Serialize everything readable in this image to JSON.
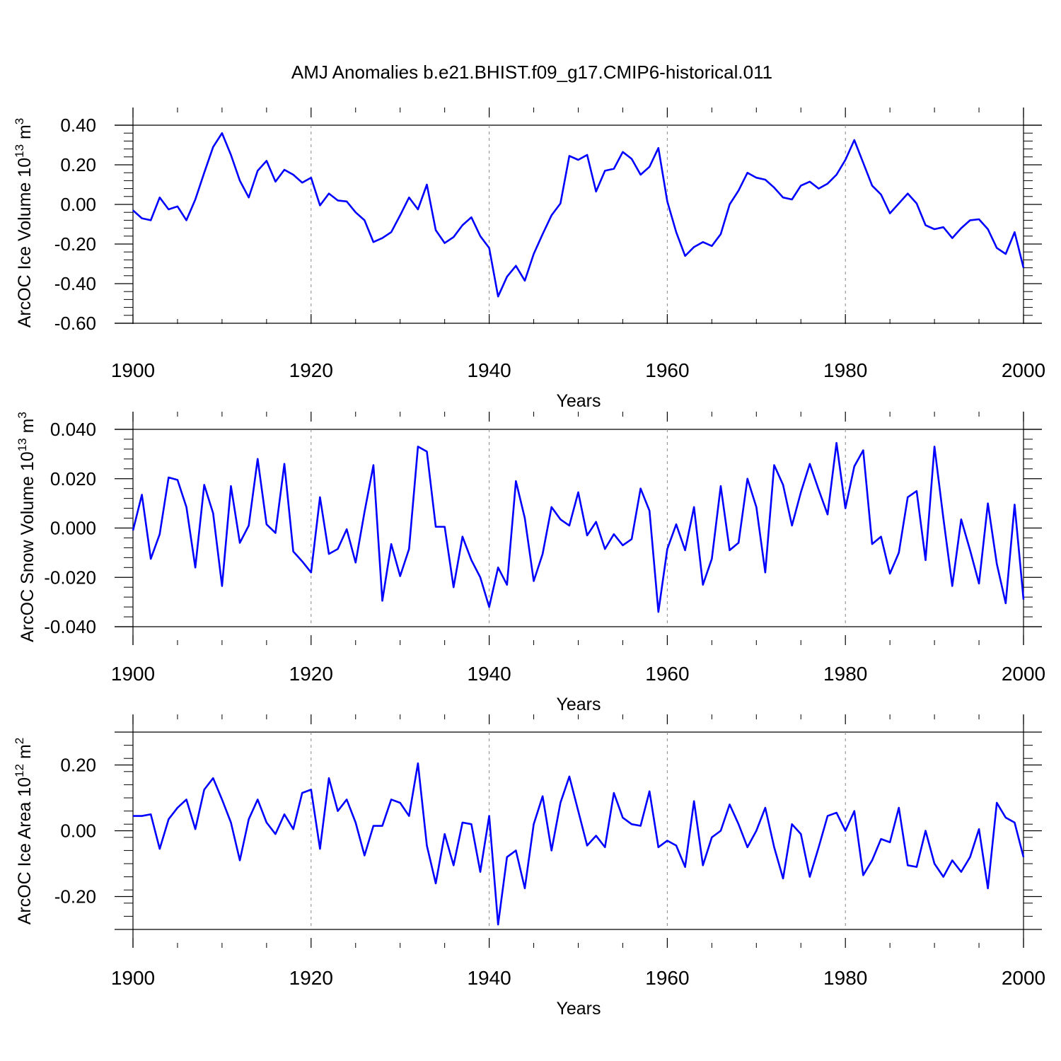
{
  "chart_data": [
    {
      "type": "line",
      "title": "AMJ Anomalies b.e21.BHIST.f09_g17.CMIP6-historical.011",
      "ylabel_main": "ArcOC Ice Volume 10",
      "ylabel_exp": "13",
      "ylabel_unit": " m",
      "ylabel_unit_exp": "3",
      "xlabel": "Years",
      "xlim": [
        1900,
        2000
      ],
      "ylim": [
        -0.6,
        0.5
      ],
      "y_ticks": [
        -0.6,
        -0.4,
        -0.2,
        0.0,
        0.2,
        0.4
      ],
      "y_tick_labels": [
        "-0.60",
        "-0.40",
        "-0.20",
        "0.00",
        "0.20",
        "0.40"
      ],
      "x_ticks": [
        1900,
        1920,
        1940,
        1960,
        1980,
        2000
      ],
      "x_tick_labels": [
        "1900",
        "1920",
        "1940",
        "1960",
        "1980",
        "2000"
      ],
      "line_color": "#0000ff",
      "x_start": 1900,
      "values": [
        -0.03,
        -0.07,
        -0.08,
        0.035,
        -0.025,
        -0.01,
        -0.08,
        0.025,
        0.16,
        0.29,
        0.36,
        0.25,
        0.12,
        0.035,
        0.17,
        0.22,
        0.115,
        0.175,
        0.15,
        0.11,
        0.135,
        -0.005,
        0.055,
        0.02,
        0.015,
        -0.04,
        -0.08,
        -0.19,
        -0.17,
        -0.14,
        -0.055,
        0.035,
        -0.025,
        0.1,
        -0.13,
        -0.195,
        -0.165,
        -0.105,
        -0.065,
        -0.16,
        -0.22,
        -0.465,
        -0.365,
        -0.31,
        -0.385,
        -0.25,
        -0.15,
        -0.055,
        0.005,
        0.245,
        0.225,
        0.25,
        0.065,
        0.17,
        0.18,
        0.265,
        0.23,
        0.15,
        0.19,
        0.285,
        0.015,
        -0.14,
        -0.26,
        -0.215,
        -0.19,
        -0.21,
        -0.15,
        0.0,
        0.07,
        0.16,
        0.135,
        0.125,
        0.085,
        0.035,
        0.025,
        0.095,
        0.115,
        0.08,
        0.105,
        0.15,
        0.225,
        0.325,
        0.21,
        0.095,
        0.05,
        -0.045,
        0.005,
        0.055,
        0.005,
        -0.105,
        -0.125,
        -0.115,
        -0.17,
        -0.12,
        -0.08,
        -0.075,
        -0.125,
        -0.22,
        -0.25,
        -0.14,
        -0.32
      ]
    },
    {
      "type": "line",
      "ylabel_main": "ArcOC Snow Volume 10",
      "ylabel_exp": "13",
      "ylabel_unit": " m",
      "ylabel_unit_exp": "3",
      "xlabel": "Years",
      "xlim": [
        1900,
        2000
      ],
      "ylim": [
        -0.04,
        0.04
      ],
      "y_ticks": [
        -0.04,
        -0.02,
        0.0,
        0.02,
        0.04
      ],
      "y_tick_labels": [
        "-0.040",
        "-0.020",
        "0.000",
        "0.020",
        "0.040"
      ],
      "x_ticks": [
        1900,
        1920,
        1940,
        1960,
        1980,
        2000
      ],
      "x_tick_labels": [
        "1900",
        "1920",
        "1940",
        "1960",
        "1980",
        "2000"
      ],
      "line_color": "#0000ff",
      "x_start": 1900,
      "values": [
        -0.001,
        0.0135,
        -0.0125,
        -0.0025,
        0.0205,
        0.0195,
        0.0085,
        -0.016,
        0.0175,
        0.006,
        -0.0235,
        0.017,
        -0.006,
        0.001,
        0.028,
        0.0015,
        -0.002,
        0.026,
        -0.0095,
        -0.0135,
        -0.018,
        0.0125,
        -0.0105,
        -0.0085,
        -0.0005,
        -0.014,
        0.0065,
        0.0255,
        -0.0295,
        -0.0065,
        -0.0195,
        -0.0085,
        0.033,
        0.031,
        0.0005,
        0.0005,
        -0.024,
        -0.0035,
        -0.013,
        -0.02,
        -0.032,
        -0.016,
        -0.023,
        0.019,
        0.004,
        -0.0215,
        -0.0105,
        0.0085,
        0.0035,
        0.001,
        0.0145,
        -0.003,
        0.0025,
        -0.0085,
        -0.0025,
        -0.007,
        -0.0045,
        0.016,
        0.007,
        -0.034,
        -0.0085,
        0.0015,
        -0.009,
        0.0085,
        -0.023,
        -0.0125,
        0.017,
        -0.009,
        -0.006,
        0.02,
        0.0085,
        -0.018,
        0.0255,
        0.0175,
        0.001,
        0.0145,
        0.026,
        0.0155,
        0.0055,
        0.0345,
        0.008,
        0.025,
        0.0315,
        -0.0065,
        -0.0035,
        -0.0185,
        -0.01,
        0.0125,
        0.015,
        -0.013,
        0.033,
        0.004,
        -0.0235,
        0.0035,
        -0.009,
        -0.0225,
        0.01,
        -0.0145,
        -0.0305,
        0.0095,
        -0.029
      ]
    },
    {
      "type": "line",
      "ylabel_main": "ArcOC Ice Area 10",
      "ylabel_exp": "12",
      "ylabel_unit": " m",
      "ylabel_unit_exp": "2",
      "xlabel": "Years",
      "xlim": [
        1900,
        2000
      ],
      "ylim": [
        -0.3,
        0.3
      ],
      "y_ticks": [
        -0.2,
        0.0,
        0.2
      ],
      "y_tick_labels": [
        "-0.20",
        "0.00",
        "0.20"
      ],
      "x_ticks": [
        1900,
        1920,
        1940,
        1960,
        1980,
        2000
      ],
      "x_tick_labels": [
        "1900",
        "1920",
        "1940",
        "1960",
        "1980",
        "2000"
      ],
      "line_color": "#0000ff",
      "x_start": 1900,
      "values": [
        0.045,
        0.045,
        0.05,
        -0.055,
        0.035,
        0.07,
        0.095,
        0.005,
        0.125,
        0.16,
        0.095,
        0.025,
        -0.09,
        0.035,
        0.095,
        0.025,
        -0.01,
        0.05,
        0.005,
        0.115,
        0.125,
        -0.055,
        0.16,
        0.06,
        0.095,
        0.025,
        -0.075,
        0.015,
        0.015,
        0.095,
        0.085,
        0.045,
        0.205,
        -0.045,
        -0.16,
        -0.01,
        -0.105,
        0.025,
        0.02,
        -0.125,
        0.045,
        -0.285,
        -0.08,
        -0.06,
        -0.175,
        0.02,
        0.105,
        -0.06,
        0.085,
        0.165,
        0.06,
        -0.045,
        -0.015,
        -0.05,
        0.115,
        0.04,
        0.02,
        0.015,
        0.12,
        -0.05,
        -0.03,
        -0.045,
        -0.11,
        0.09,
        -0.105,
        -0.02,
        0.0,
        0.08,
        0.02,
        -0.05,
        0.0,
        0.07,
        -0.05,
        -0.145,
        0.02,
        -0.01,
        -0.14,
        -0.05,
        0.045,
        0.055,
        0.0,
        0.06,
        -0.135,
        -0.09,
        -0.025,
        -0.035,
        0.07,
        -0.105,
        -0.11,
        0.0,
        -0.1,
        -0.14,
        -0.09,
        -0.125,
        -0.08,
        0.005,
        -0.175,
        0.085,
        0.04,
        0.025,
        -0.08
      ]
    }
  ]
}
